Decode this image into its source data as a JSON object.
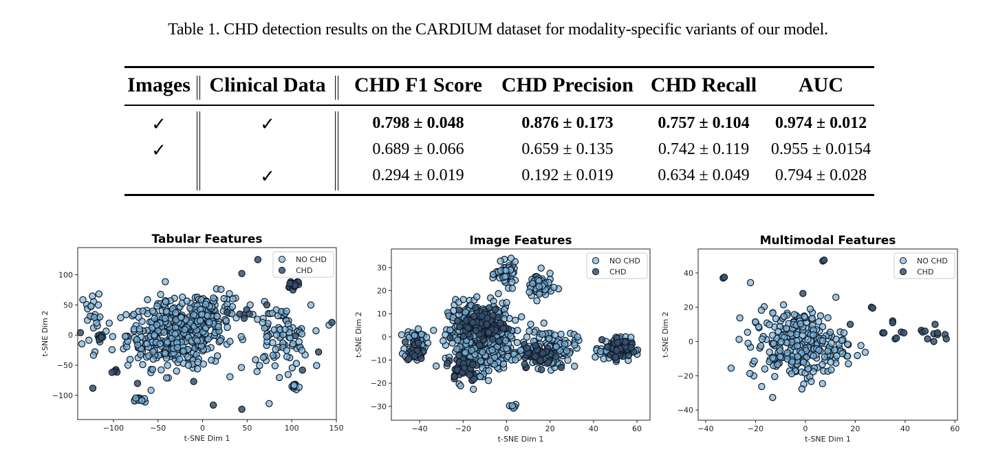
{
  "caption": "Table 1. CHD detection results on the CARDIUM dataset for modality-specific variants of our model.",
  "table": {
    "headers": [
      "Images",
      "Clinical Data",
      "CHD F1 Score",
      "CHD Precision",
      "CHD Recall",
      "AUC"
    ],
    "check_glyph": "✓",
    "rows": [
      {
        "images": true,
        "clinical": true,
        "bold": true,
        "values": [
          "0.798 ± 0.048",
          "0.876 ± 0.173",
          "0.757 ± 0.104",
          "0.974 ± 0.012"
        ]
      },
      {
        "images": true,
        "clinical": false,
        "bold": false,
        "values": [
          "0.689 ± 0.066",
          "0.659 ± 0.135",
          "0.742 ± 0.119",
          "0.955 ± 0.0154"
        ]
      },
      {
        "images": false,
        "clinical": true,
        "bold": false,
        "values": [
          "0.294 ± 0.019",
          "0.192 ± 0.019",
          "0.634 ± 0.049",
          "0.794 ± 0.028"
        ]
      }
    ]
  },
  "colors": {
    "no_chd": "#7fb2d5",
    "chd": "#3a5068",
    "edge": "#0b1a2a"
  },
  "chart_data": [
    {
      "type": "scatter",
      "title": "Tabular Features",
      "xlabel": "t-SNE Dim 1",
      "ylabel": "t-SNE Dim 2",
      "xlim": [
        -140,
        150
      ],
      "ylim": [
        -140,
        145
      ],
      "xticks": [
        -100,
        -50,
        0,
        50,
        100,
        150
      ],
      "yticks": [
        -100,
        -50,
        0,
        50,
        100
      ],
      "xtick_labels": [
        "−100",
        "−50",
        "0",
        "50",
        "100",
        "150"
      ],
      "ytick_labels": [
        "−100",
        "−50",
        "0",
        "50",
        "100"
      ],
      "legend": {
        "position": "top-right",
        "entries": [
          "NO CHD",
          "CHD"
        ]
      },
      "grid": false,
      "series": [
        {
          "name": "NO CHD",
          "clusters": [
            {
              "center": [
                -30,
                0
              ],
              "spread": [
                45,
                45
              ],
              "n": 420
            },
            {
              "center": [
                10,
                40
              ],
              "spread": [
                30,
                25
              ],
              "n": 80
            },
            {
              "center": [
                85,
                -5
              ],
              "spread": [
                30,
                45
              ],
              "n": 90
            },
            {
              "center": [
                -70,
                -108
              ],
              "spread": [
                5,
                5
              ],
              "n": 14
            },
            {
              "center": [
                103,
                -85
              ],
              "spread": [
                5,
                5
              ],
              "n": 14
            },
            {
              "center": [
                -120,
                20
              ],
              "spread": [
                15,
                60
              ],
              "n": 30
            }
          ]
        },
        {
          "name": "CHD",
          "clusters": [
            {
              "center": [
                102,
                85
              ],
              "spread": [
                6,
                6
              ],
              "n": 20
            },
            {
              "center": [
                -113,
                -4
              ],
              "spread": [
                4,
                4
              ],
              "n": 5
            },
            {
              "center": [
                -97,
                -62
              ],
              "spread": [
                4,
                4
              ],
              "n": 5
            },
            {
              "center": [
                45,
                35
              ],
              "spread": [
                10,
                20
              ],
              "n": 6
            }
          ],
          "points": [
            [
              -137,
              4
            ],
            [
              145,
              21
            ],
            [
              -123,
              -88
            ],
            [
              12,
              -116
            ],
            [
              44,
              -123
            ],
            [
              62,
              125
            ],
            [
              44,
              102
            ],
            [
              130,
              -28
            ],
            [
              112,
              -58
            ],
            [
              72,
              50
            ],
            [
              104,
              -1
            ],
            [
              -73,
              -80
            ],
            [
              -10,
              -77
            ]
          ]
        }
      ]
    },
    {
      "type": "scatter",
      "title": "Image Features",
      "xlabel": "t-SNE Dim 1",
      "ylabel": "t-SNE Dim 2",
      "xlim": [
        -53,
        66
      ],
      "ylim": [
        -36,
        38
      ],
      "xticks": [
        -40,
        -20,
        0,
        20,
        40,
        60
      ],
      "yticks": [
        -30,
        -20,
        -10,
        0,
        10,
        20,
        30
      ],
      "xtick_labels": [
        "−40",
        "−20",
        "0",
        "20",
        "40",
        "60"
      ],
      "ytick_labels": [
        "−30",
        "−20",
        "−10",
        "0",
        "10",
        "20",
        "30"
      ],
      "legend": {
        "position": "top-right",
        "entries": [
          "NO CHD",
          "CHD"
        ]
      },
      "grid": false,
      "series": [
        {
          "name": "NO CHD",
          "clusters": [
            {
              "center": [
                -42,
                -3
              ],
              "spread": [
                4,
                6
              ],
              "n": 60
            },
            {
              "center": [
                -12,
                0
              ],
              "spread": [
                12,
                12
              ],
              "n": 500
            },
            {
              "center": [
                0,
                27
              ],
              "spread": [
                4,
                4
              ],
              "n": 50
            },
            {
              "center": [
                15,
                22
              ],
              "spread": [
                5,
                5
              ],
              "n": 60
            },
            {
              "center": [
                20,
                -5
              ],
              "spread": [
                10,
                7
              ],
              "n": 120
            },
            {
              "center": [
                50,
                -5
              ],
              "spread": [
                6,
                4
              ],
              "n": 90
            },
            {
              "center": [
                3,
                -30
              ],
              "spread": [
                1.5,
                1
              ],
              "n": 6
            }
          ]
        },
        {
          "name": "CHD",
          "clusters": [
            {
              "center": [
                -42,
                -6
              ],
              "spread": [
                3,
                4
              ],
              "n": 30
            },
            {
              "center": [
                -10,
                5
              ],
              "spread": [
                8,
                6
              ],
              "n": 100
            },
            {
              "center": [
                -20,
                -13
              ],
              "spread": [
                6,
                5
              ],
              "n": 50
            },
            {
              "center": [
                15,
                -8
              ],
              "spread": [
                6,
                4
              ],
              "n": 50
            },
            {
              "center": [
                52,
                -5
              ],
              "spread": [
                4,
                3
              ],
              "n": 90
            }
          ]
        }
      ]
    },
    {
      "type": "scatter",
      "title": "Multimodal Features",
      "xlabel": "t-SNE Dim 1",
      "ylabel": "t-SNE Dim 2",
      "xlim": [
        -43,
        61
      ],
      "ylim": [
        -46,
        54
      ],
      "xticks": [
        -40,
        -20,
        0,
        20,
        40,
        60
      ],
      "yticks": [
        -40,
        -20,
        0,
        20,
        40
      ],
      "xtick_labels": [
        "−40",
        "−20",
        "0",
        "20",
        "40",
        "60"
      ],
      "ytick_labels": [
        "−40",
        "−20",
        "0",
        "20",
        "40"
      ],
      "legend": {
        "position": "top-right",
        "entries": [
          "NO CHD",
          "CHD"
        ]
      },
      "grid": false,
      "series": [
        {
          "name": "NO CHD",
          "clusters": [
            {
              "center": [
                -3,
                -2
              ],
              "spread": [
                16,
                17
              ],
              "n": 260
            }
          ]
        },
        {
          "name": "CHD",
          "points": [
            [
              -33,
              37
            ],
            [
              -32.5,
              37.5
            ],
            [
              7,
              47
            ],
            [
              7.5,
              47.5
            ],
            [
              -1,
              28
            ],
            [
              26.5,
              20
            ],
            [
              27,
              19.5
            ],
            [
              18,
              10
            ],
            [
              35,
              12
            ],
            [
              35,
              11
            ],
            [
              31,
              5
            ],
            [
              31.5,
              5
            ],
            [
              36,
              1.5
            ],
            [
              36.5,
              2
            ],
            [
              38.5,
              5.5
            ],
            [
              39.5,
              5
            ],
            [
              46.5,
              6.5
            ],
            [
              47,
              5.5
            ],
            [
              48,
              6
            ],
            [
              49,
              1.5
            ],
            [
              52,
              10
            ],
            [
              51.5,
              4.5
            ],
            [
              51.5,
              0
            ],
            [
              53,
              4
            ],
            [
              53,
              5
            ],
            [
              56,
              4
            ],
            [
              56.5,
              1.5
            ]
          ]
        }
      ]
    }
  ]
}
